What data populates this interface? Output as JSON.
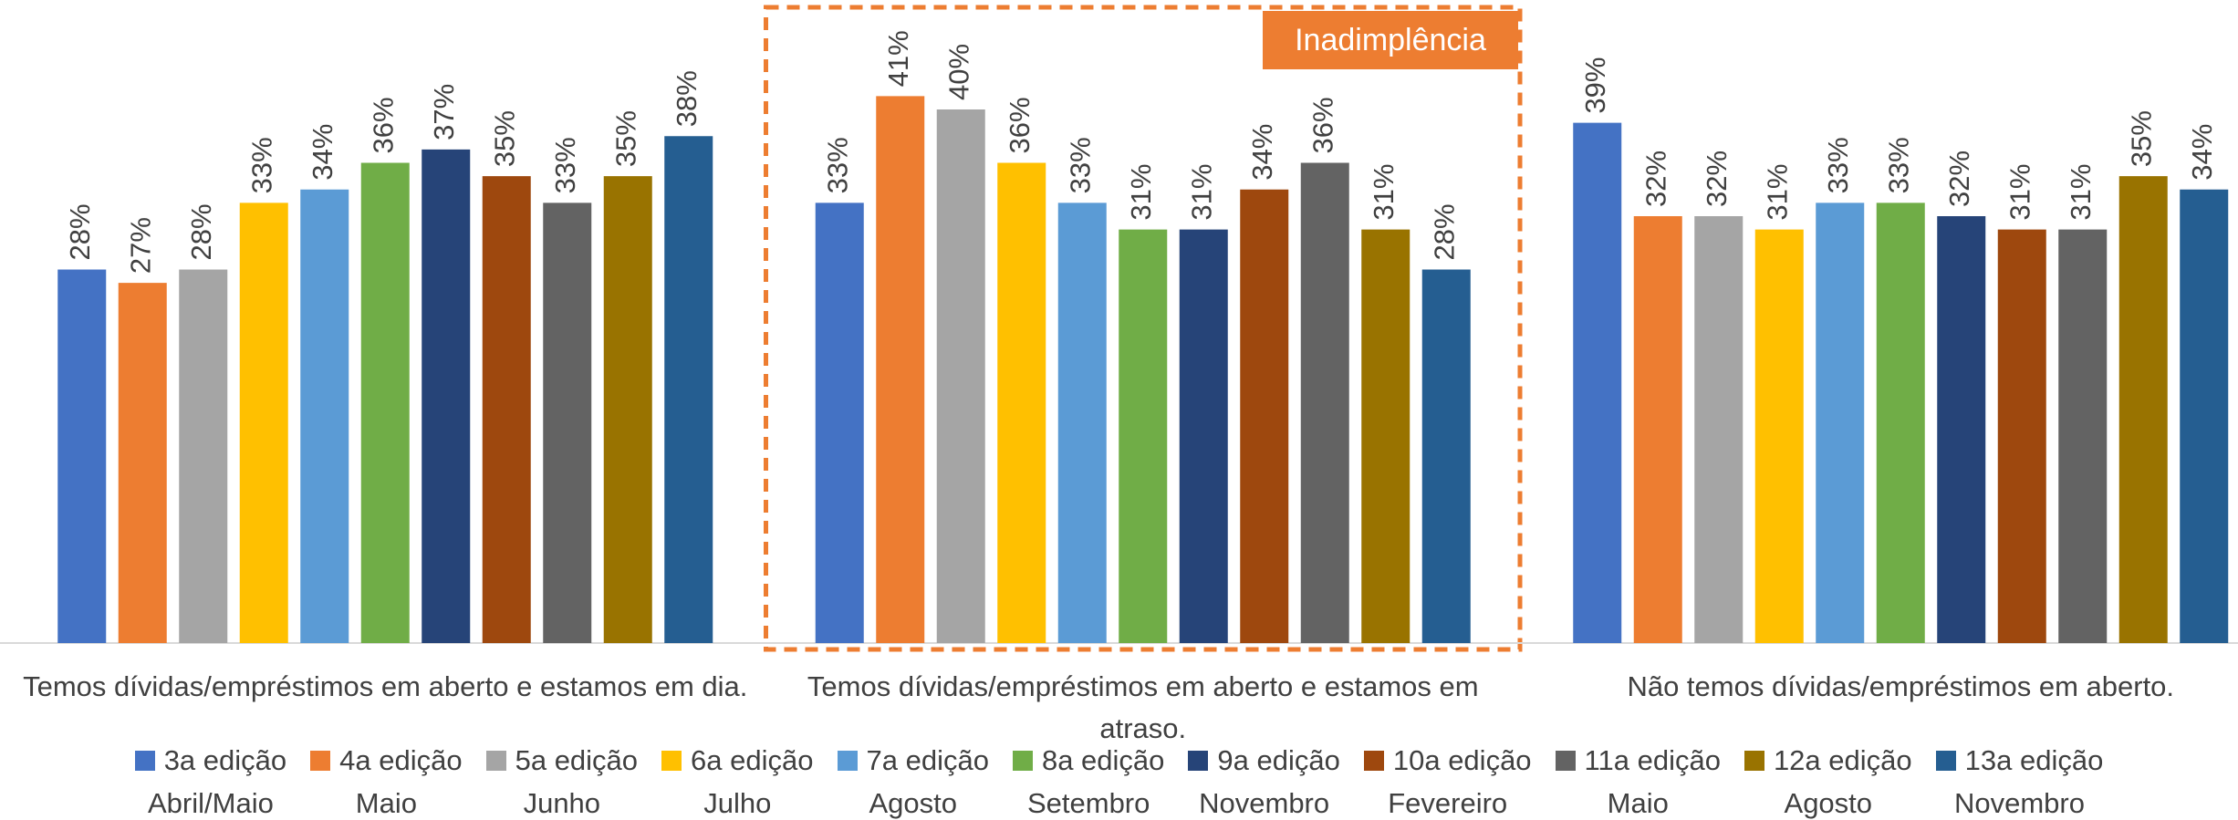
{
  "chart_data": {
    "type": "bar",
    "categories": [
      "Temos dívidas/empréstimos em aberto e estamos em dia.",
      "Temos dívidas/empréstimos em aberto e estamos em atraso.",
      "Não temos dívidas/empréstimos em aberto."
    ],
    "series": [
      {
        "name": "3a edição",
        "period": "Abril/Maio",
        "color": "#4472C4",
        "values": [
          28,
          33,
          39
        ],
        "value_labels": [
          "28%",
          "33%",
          "39%"
        ]
      },
      {
        "name": "4a edição",
        "period": "Maio",
        "color": "#ED7D31",
        "values": [
          27,
          41,
          32
        ],
        "value_labels": [
          "27%",
          "41%",
          "32%"
        ]
      },
      {
        "name": "5a edição",
        "period": "Junho",
        "color": "#A5A5A5",
        "values": [
          28,
          40,
          32
        ],
        "value_labels": [
          "28%",
          "40%",
          "32%"
        ]
      },
      {
        "name": "6a edição",
        "period": "Julho",
        "color": "#FFC000",
        "values": [
          33,
          36,
          31
        ],
        "value_labels": [
          "33%",
          "36%",
          "31%"
        ]
      },
      {
        "name": "7a edição",
        "period": "Agosto",
        "color": "#5B9BD5",
        "values": [
          34,
          33,
          33
        ],
        "value_labels": [
          "34%",
          "33%",
          "33%"
        ]
      },
      {
        "name": "8a edição",
        "period": "Setembro",
        "color": "#70AD47",
        "values": [
          36,
          31,
          33
        ],
        "value_labels": [
          "36%",
          "31%",
          "33%"
        ]
      },
      {
        "name": "9a edição",
        "period": "Novembro",
        "color": "#264478",
        "values": [
          37,
          31,
          32
        ],
        "value_labels": [
          "37%",
          "31%",
          "32%"
        ]
      },
      {
        "name": "10a edição",
        "period": "Fevereiro",
        "color": "#9E480E",
        "values": [
          35,
          34,
          31
        ],
        "value_labels": [
          "35%",
          "34%",
          "31%"
        ]
      },
      {
        "name": "11a edição",
        "period": "Maio",
        "color": "#636363",
        "values": [
          33,
          36,
          31
        ],
        "value_labels": [
          "33%",
          "36%",
          "31%"
        ]
      },
      {
        "name": "12a edição",
        "period": "Agosto",
        "color": "#997300",
        "values": [
          35,
          31,
          35
        ],
        "value_labels": [
          "35%",
          "31%",
          "35%"
        ]
      },
      {
        "name": "13a edição",
        "period": "Novembro",
        "color": "#255E91",
        "values": [
          38,
          28,
          34
        ],
        "value_labels": [
          "38%",
          "28%",
          "34%"
        ]
      }
    ],
    "ylim": [
      0,
      48
    ],
    "highlight": {
      "label": "Inadimplência",
      "category": 1,
      "color": "#ED7D31"
    }
  }
}
